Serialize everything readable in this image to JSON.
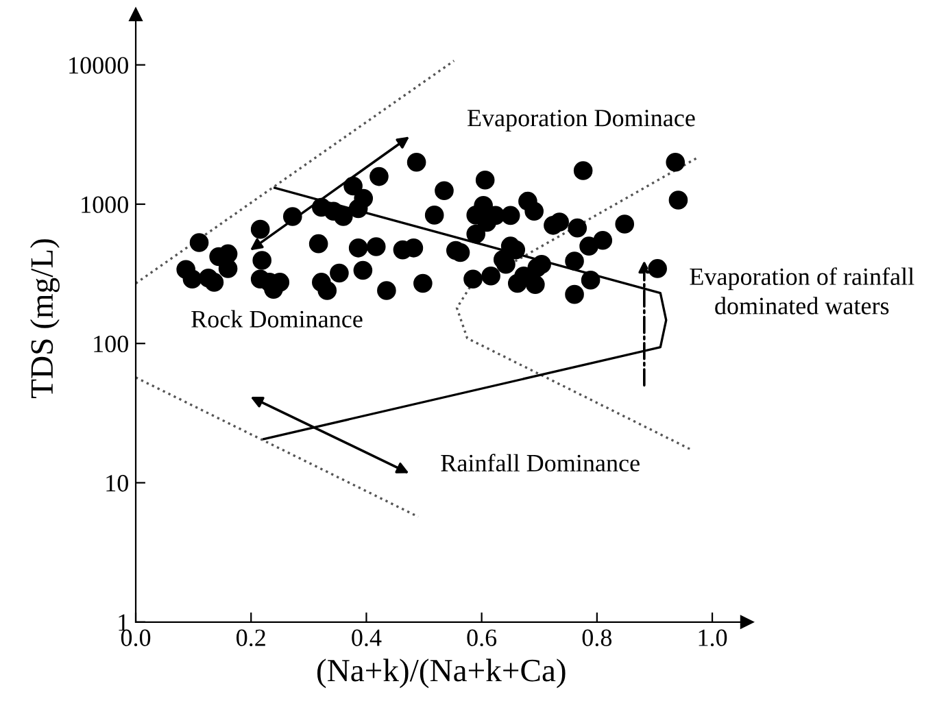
{
  "chart_data": {
    "type": "scatter",
    "xlabel": "(Na+k)/(Na+k+Ca)",
    "ylabel": "TDS (mg/L)",
    "log": "y",
    "xlim": [
      0.0,
      1.06
    ],
    "ylim": [
      1,
      23000
    ],
    "xticks": [
      "0.0",
      0.2,
      0.4,
      0.6,
      0.8,
      "1.0"
    ],
    "yticks": [
      1,
      10,
      100,
      1000,
      10000
    ],
    "grid": false,
    "series": [
      {
        "color": "#000000",
        "marker": "circle",
        "x": [
          0.087,
          0.11,
          0.098,
          0.126,
          0.136,
          0.144,
          0.16,
          0.16,
          0.216,
          0.219,
          0.216,
          0.232,
          0.239,
          0.25,
          0.272,
          0.317,
          0.322,
          0.322,
          0.332,
          0.343,
          0.36,
          0.353,
          0.377,
          0.386,
          0.395,
          0.386,
          0.394,
          0.422,
          0.417,
          0.435,
          0.463,
          0.482,
          0.487,
          0.498,
          0.518,
          0.535,
          0.555,
          0.563,
          0.585,
          0.59,
          0.59,
          0.603,
          0.606,
          0.609,
          0.624,
          0.616,
          0.637,
          0.642,
          0.65,
          0.65,
          0.659,
          0.662,
          0.673,
          0.68,
          0.691,
          0.693,
          0.696,
          0.704,
          0.724,
          0.735,
          0.761,
          0.761,
          0.766,
          0.776,
          0.786,
          0.789,
          0.81,
          0.848,
          0.905,
          0.936,
          0.941
        ],
        "values": [
          340,
          530,
          290,
          295,
          275,
          420,
          440,
          345,
          660,
          395,
          290,
          275,
          245,
          275,
          815,
          520,
          950,
          275,
          240,
          890,
          815,
          320,
          1350,
          930,
          1100,
          485,
          335,
          1580,
          495,
          240,
          470,
          485,
          2000,
          270,
          835,
          1250,
          465,
          450,
          290,
          610,
          835,
          980,
          1490,
          740,
          830,
          305,
          400,
          370,
          830,
          500,
          470,
          270,
          305,
          1050,
          890,
          265,
          350,
          370,
          705,
          745,
          390,
          225,
          675,
          1740,
          500,
          285,
          550,
          720,
          345,
          2000,
          1070
        ]
      },
      {
        "type": "line",
        "color": "#555555",
        "line_style": "dotted",
        "marker": "none",
        "x": [
          0.0,
          0.552
        ],
        "values": [
          270,
          10700
        ]
      },
      {
        "type": "line",
        "color": "#555555",
        "line_style": "dotted",
        "marker": "none",
        "x": [
          0.0,
          0.49
        ],
        "values": [
          57,
          5.7
        ]
      },
      {
        "type": "line",
        "color": "#555555",
        "line_style": "dotted",
        "marker": "none",
        "x": [
          0.972,
          0.58,
          0.557,
          0.575,
          0.962
        ],
        "values": [
          2130,
          255,
          180,
          109,
          17.4
        ]
      },
      {
        "type": "line",
        "color": "#000000",
        "line_style": "solid",
        "marker": "none",
        "x": [
          0.241,
          0.91,
          0.92,
          0.91,
          0.222
        ],
        "values": [
          1310,
          230,
          147,
          94,
          20.6
        ]
      }
    ],
    "annotations": [
      "Evaporation Dominace",
      "Rock Dominance",
      "Rainfall Dominance",
      "Evaporation of rainfall\ndominated waters"
    ]
  }
}
